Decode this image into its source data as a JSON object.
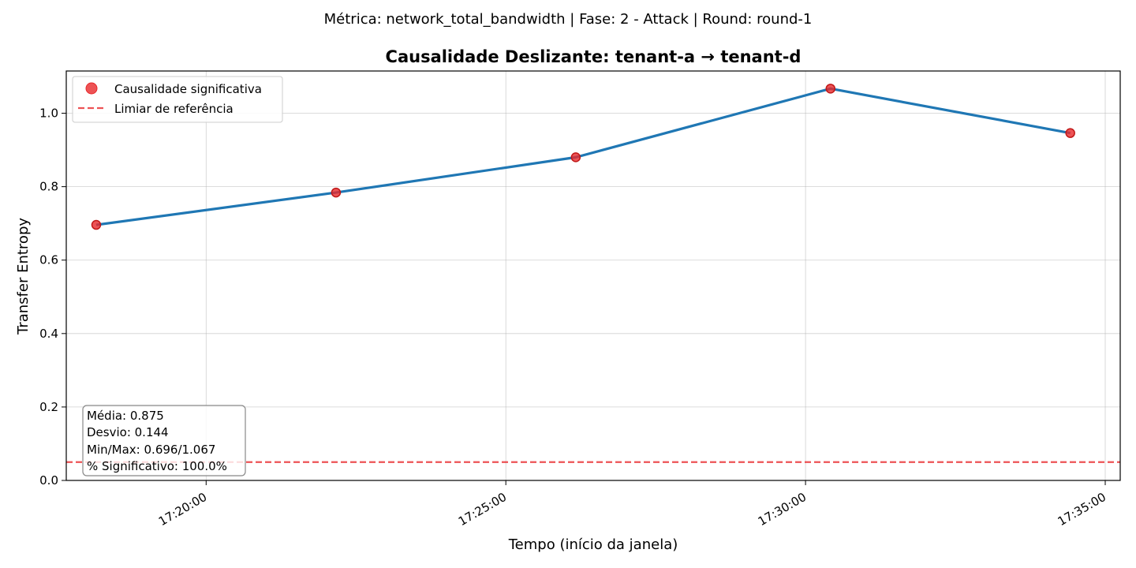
{
  "suptitle": "Métrica: network_total_bandwidth | Fase: 2 - Attack | Round: round-1",
  "chart_data": {
    "type": "line",
    "title": "Causalidade Deslizante: tenant-a → tenant-d",
    "xlabel": "Tempo (início da janela)",
    "ylabel": "Transfer Entropy",
    "x_ticks": [
      "17:20:00",
      "17:25:00",
      "17:30:00",
      "17:35:00"
    ],
    "y_ticks": [
      "0.0",
      "0.2",
      "0.4",
      "0.6",
      "0.8",
      "1.0"
    ],
    "ylim": [
      0.0,
      1.115
    ],
    "xlim": [
      "17:17:40",
      "17:35:15"
    ],
    "grid": true,
    "series": [
      {
        "x": [
          "17:18:10",
          "17:22:10",
          "17:26:10",
          "17:30:25",
          "17:34:25"
        ],
        "values": [
          0.696,
          0.784,
          0.88,
          1.067,
          0.946
        ],
        "color": "#1f77b4"
      }
    ],
    "significant_points": {
      "name": "Causalidade significativa",
      "x": [
        "17:18:10",
        "17:22:10",
        "17:26:10",
        "17:30:25",
        "17:34:25"
      ],
      "values": [
        0.696,
        0.784,
        0.88,
        1.067,
        0.946
      ],
      "color": "#e8282b"
    },
    "reference_line": {
      "name": "Limiar de referência",
      "value": 0.05,
      "color": "#e8282b"
    },
    "legend_placement": "top-left",
    "stats_box": {
      "lines": [
        "Média: 0.875",
        "Desvio: 0.144",
        "Min/Max: 0.696/1.067",
        "% Significativo: 100.0%"
      ],
      "placement": "bottom-left"
    }
  }
}
